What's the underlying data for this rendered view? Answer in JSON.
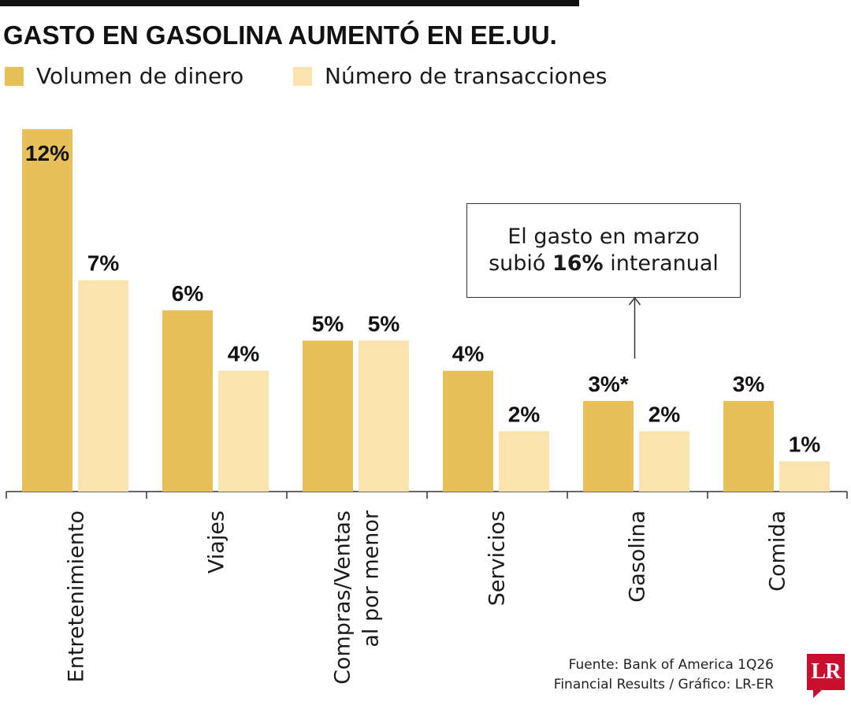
{
  "title": "GASTO EN GASOLINA AUMENTÓ EN EE.UU.",
  "legend": [
    {
      "label": "Volumen de dinero",
      "color": "#e8c05a"
    },
    {
      "label": "Número de transacciones",
      "color": "#fbe3ad"
    }
  ],
  "annotation": {
    "line1": "El gasto en marzo",
    "line2_prefix": "subió ",
    "line2_bold": "16%",
    "line2_suffix": " interanual"
  },
  "source": {
    "line1": "Fuente: Bank of America 1Q26",
    "line2": "Financial Results / Gráfico: LR-ER"
  },
  "logo_text": "LR",
  "chart_data": {
    "type": "bar",
    "categories": [
      [
        "Entretenimiento"
      ],
      [
        "Viajes"
      ],
      [
        "Compras/Ventas",
        "al por menor"
      ],
      [
        "Servicios"
      ],
      [
        "Gasolina"
      ],
      [
        "Comida"
      ]
    ],
    "series": [
      {
        "name": "Volumen de dinero",
        "color": "#e8c05a",
        "values": [
          12,
          6,
          5,
          4,
          3,
          3
        ],
        "labels": [
          "12%",
          "6%",
          "5%",
          "4%",
          "3%*",
          "3%"
        ]
      },
      {
        "name": "Número de transacciones",
        "color": "#fbe3ad",
        "values": [
          7,
          4,
          5,
          2,
          2,
          1
        ],
        "labels": [
          "7%",
          "4%",
          "5%",
          "2%",
          "2%",
          "1%"
        ]
      }
    ],
    "ylim": [
      0,
      12
    ]
  }
}
